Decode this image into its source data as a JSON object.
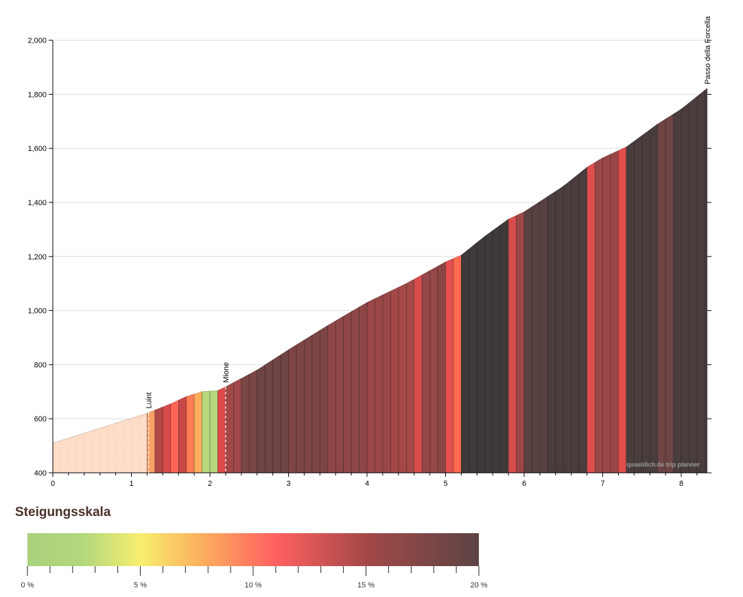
{
  "chart_data": {
    "type": "area",
    "xlabel": "",
    "ylabel": "",
    "xlim": [
      0,
      8.35
    ],
    "ylim": [
      400,
      2000
    ],
    "x_ticks": [
      0,
      1,
      2,
      3,
      4,
      5,
      6,
      7,
      8
    ],
    "y_ticks": [
      400,
      600,
      800,
      1000,
      1200,
      1400,
      1600,
      1800,
      2000
    ],
    "y_tick_labels": [
      "400",
      "600",
      "800",
      "1,000",
      "1,200",
      "1,400",
      "1,600",
      "1,800",
      "2,000"
    ],
    "grid": "horizontal",
    "profile": [
      {
        "km": 0.0,
        "ele": 510
      },
      {
        "km": 1.2,
        "ele": 620
      },
      {
        "km": 1.3,
        "ele": 632
      },
      {
        "km": 1.5,
        "ele": 655
      },
      {
        "km": 1.7,
        "ele": 682
      },
      {
        "km": 1.9,
        "ele": 700
      },
      {
        "km": 2.1,
        "ele": 704
      },
      {
        "km": 2.2,
        "ele": 718
      },
      {
        "km": 2.6,
        "ele": 780
      },
      {
        "km": 3.0,
        "ele": 855
      },
      {
        "km": 3.5,
        "ele": 945
      },
      {
        "km": 4.0,
        "ele": 1030
      },
      {
        "km": 4.5,
        "ele": 1100
      },
      {
        "km": 5.0,
        "ele": 1180
      },
      {
        "km": 5.2,
        "ele": 1205
      },
      {
        "km": 5.5,
        "ele": 1275
      },
      {
        "km": 5.8,
        "ele": 1338
      },
      {
        "km": 6.0,
        "ele": 1365
      },
      {
        "km": 6.5,
        "ele": 1460
      },
      {
        "km": 6.8,
        "ele": 1530
      },
      {
        "km": 7.0,
        "ele": 1565
      },
      {
        "km": 7.3,
        "ele": 1605
      },
      {
        "km": 7.7,
        "ele": 1690
      },
      {
        "km": 8.0,
        "ele": 1745
      },
      {
        "km": 8.33,
        "ele": 1822
      }
    ],
    "segments": [
      {
        "from": 0.0,
        "to": 1.2,
        "color": "#fddcc8"
      },
      {
        "from": 1.2,
        "to": 1.3,
        "color": "#f8a066"
      },
      {
        "from": 1.3,
        "to": 1.4,
        "color": "#b34848"
      },
      {
        "from": 1.4,
        "to": 1.5,
        "color": "#d94b4b"
      },
      {
        "from": 1.5,
        "to": 1.6,
        "color": "#ff6655"
      },
      {
        "from": 1.6,
        "to": 1.7,
        "color": "#c84848"
      },
      {
        "from": 1.7,
        "to": 1.8,
        "color": "#ff7d55"
      },
      {
        "from": 1.8,
        "to": 1.9,
        "color": "#ffae5c"
      },
      {
        "from": 1.9,
        "to": 2.1,
        "color": "#b9d87d"
      },
      {
        "from": 2.1,
        "to": 2.2,
        "color": "#e04a4a"
      },
      {
        "from": 2.2,
        "to": 2.4,
        "color": "#a24848"
      },
      {
        "from": 2.4,
        "to": 2.6,
        "color": "#7a4646"
      },
      {
        "from": 2.6,
        "to": 3.0,
        "color": "#6e4444"
      },
      {
        "from": 3.0,
        "to": 3.5,
        "color": "#7c4545"
      },
      {
        "from": 3.5,
        "to": 4.0,
        "color": "#8e4646"
      },
      {
        "from": 4.0,
        "to": 4.3,
        "color": "#9a4747"
      },
      {
        "from": 4.3,
        "to": 4.6,
        "color": "#a44848"
      },
      {
        "from": 4.6,
        "to": 4.7,
        "color": "#d94c4c"
      },
      {
        "from": 4.7,
        "to": 4.9,
        "color": "#964747"
      },
      {
        "from": 4.9,
        "to": 5.0,
        "color": "#8a4646"
      },
      {
        "from": 5.0,
        "to": 5.1,
        "color": "#e34f4f"
      },
      {
        "from": 5.1,
        "to": 5.2,
        "color": "#ff6a50"
      },
      {
        "from": 5.2,
        "to": 5.8,
        "color": "#3f3939"
      },
      {
        "from": 5.8,
        "to": 5.9,
        "color": "#d94c4c"
      },
      {
        "from": 5.9,
        "to": 6.0,
        "color": "#9c4747"
      },
      {
        "from": 6.0,
        "to": 6.3,
        "color": "#5a4141"
      },
      {
        "from": 6.3,
        "to": 6.8,
        "color": "#4a3d3d"
      },
      {
        "from": 6.8,
        "to": 6.9,
        "color": "#e04e4e"
      },
      {
        "from": 6.9,
        "to": 7.2,
        "color": "#9a4747"
      },
      {
        "from": 7.2,
        "to": 7.3,
        "color": "#e04e4e"
      },
      {
        "from": 7.3,
        "to": 7.7,
        "color": "#4a3d3d"
      },
      {
        "from": 7.7,
        "to": 7.9,
        "color": "#6e4444"
      },
      {
        "from": 7.9,
        "to": 8.33,
        "color": "#4a3d3d"
      }
    ],
    "waypoints": [
      {
        "km": 1.22,
        "label": "Luint",
        "dashed": true
      },
      {
        "km": 2.2,
        "label": "Mione",
        "dashed": true
      },
      {
        "km": 8.33,
        "label": "Passo della Forcella",
        "dashed": false
      }
    ],
    "watermark": "quaeldich.de trip planner"
  },
  "legend": {
    "title": "Steigungsskala",
    "min": 0,
    "max": 20,
    "labels": [
      "0 %",
      "5 %",
      "10 %",
      "15 %",
      "20 %"
    ],
    "label_values": [
      0,
      5,
      10,
      15,
      20
    ],
    "stops": [
      {
        "pct": 0,
        "color": "#a9d17c"
      },
      {
        "pct": 2.5,
        "color": "#b3d87c"
      },
      {
        "pct": 5,
        "color": "#f7ee6e"
      },
      {
        "pct": 7.5,
        "color": "#fbb45e"
      },
      {
        "pct": 11,
        "color": "#ff6060"
      },
      {
        "pct": 15,
        "color": "#a44848"
      },
      {
        "pct": 20,
        "color": "#5c4444"
      }
    ]
  }
}
